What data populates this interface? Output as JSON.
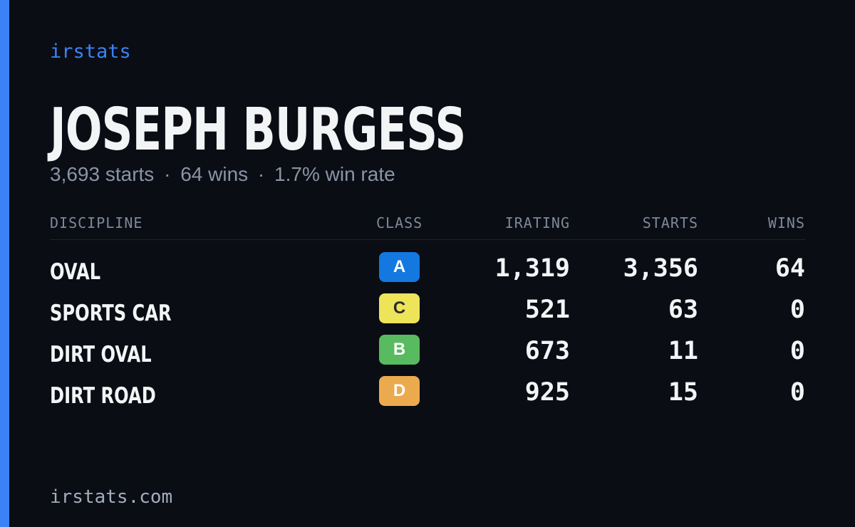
{
  "theme": {
    "accent": "#3b82f6",
    "background": "#0a0d14"
  },
  "brand": {
    "label": "irstats"
  },
  "player": {
    "name": "JOSEPH BURGESS"
  },
  "summary": {
    "starts": "3,693 starts",
    "wins": "64 wins",
    "win_rate": "1.7% win rate",
    "separator": "·"
  },
  "table": {
    "headers": {
      "discipline": "DISCIPLINE",
      "class": "CLASS",
      "irating": "IRATING",
      "starts": "STARTS",
      "wins": "WINS"
    },
    "rows": [
      {
        "discipline": "OVAL",
        "class": "A",
        "class_bg": "#1378e0",
        "class_fg": "#ffffff",
        "irating": "1,319",
        "starts": "3,356",
        "wins": "64"
      },
      {
        "discipline": "SPORTS CAR",
        "class": "C",
        "class_bg": "#ede45a",
        "class_fg": "#2b2b2b",
        "irating": "521",
        "starts": "63",
        "wins": "0"
      },
      {
        "discipline": "DIRT OVAL",
        "class": "B",
        "class_bg": "#58bb5f",
        "class_fg": "#ffffff",
        "irating": "673",
        "starts": "11",
        "wins": "0"
      },
      {
        "discipline": "DIRT ROAD",
        "class": "D",
        "class_bg": "#ecaa4f",
        "class_fg": "#ffffff",
        "irating": "925",
        "starts": "15",
        "wins": "0"
      }
    ]
  },
  "footer": {
    "url": "irstats.com"
  }
}
